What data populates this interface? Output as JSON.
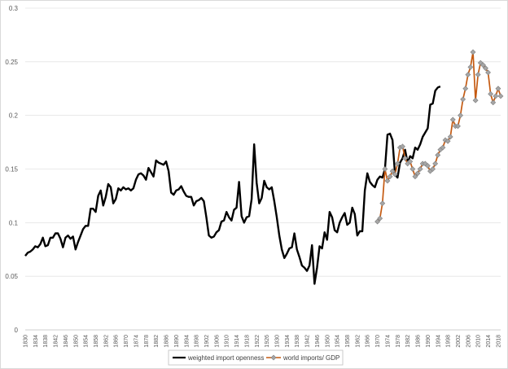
{
  "chart_data": {
    "type": "line",
    "title": "",
    "xlabel": "",
    "ylabel": "",
    "xlim": [
      1830,
      2019
    ],
    "ylim": [
      0,
      0.3
    ],
    "y_ticks": [
      0,
      0.05,
      0.1,
      0.15,
      0.2,
      0.25,
      0.3
    ],
    "y_tick_labels": [
      "0",
      "0.05",
      "0.1",
      "0.15",
      "0.2",
      "0.25",
      "0.3"
    ],
    "x_ticks": [
      1830,
      1834,
      1838,
      1842,
      1846,
      1850,
      1854,
      1858,
      1862,
      1866,
      1870,
      1874,
      1878,
      1882,
      1886,
      1890,
      1894,
      1898,
      1902,
      1906,
      1910,
      1914,
      1918,
      1922,
      1926,
      1930,
      1934,
      1938,
      1942,
      1946,
      1950,
      1954,
      1958,
      1962,
      1966,
      1970,
      1974,
      1978,
      1982,
      1986,
      1990,
      1994,
      1998,
      2002,
      2006,
      2010,
      2014,
      2018
    ],
    "grid": "horizontal",
    "legend_position": "bottom",
    "series": [
      {
        "name": "weighted import openness",
        "color": "#000000",
        "marker": "none",
        "x": [
          1830,
          1831,
          1832,
          1833,
          1834,
          1835,
          1836,
          1837,
          1838,
          1839,
          1840,
          1841,
          1842,
          1843,
          1844,
          1845,
          1846,
          1847,
          1848,
          1849,
          1850,
          1851,
          1852,
          1853,
          1854,
          1855,
          1856,
          1857,
          1858,
          1859,
          1860,
          1861,
          1862,
          1863,
          1864,
          1865,
          1866,
          1867,
          1868,
          1869,
          1870,
          1871,
          1872,
          1873,
          1874,
          1875,
          1876,
          1877,
          1878,
          1879,
          1880,
          1881,
          1882,
          1883,
          1884,
          1885,
          1886,
          1887,
          1888,
          1889,
          1890,
          1891,
          1892,
          1893,
          1894,
          1895,
          1896,
          1897,
          1898,
          1899,
          1900,
          1901,
          1902,
          1903,
          1904,
          1905,
          1906,
          1907,
          1908,
          1909,
          1910,
          1911,
          1912,
          1913,
          1914,
          1915,
          1916,
          1917,
          1918,
          1919,
          1920,
          1921,
          1922,
          1923,
          1924,
          1925,
          1926,
          1927,
          1928,
          1929,
          1930,
          1931,
          1932,
          1933,
          1934,
          1935,
          1936,
          1937,
          1938,
          1939,
          1940,
          1941,
          1942,
          1943,
          1944,
          1945,
          1946,
          1947,
          1948,
          1949,
          1950,
          1951,
          1952,
          1953,
          1954,
          1955,
          1956,
          1957,
          1958,
          1959,
          1960,
          1961,
          1962,
          1963,
          1964,
          1965,
          1966,
          1967,
          1968,
          1969,
          1970,
          1971,
          1972,
          1973,
          1974,
          1975,
          1976,
          1977,
          1978,
          1979,
          1980,
          1981,
          1982,
          1983,
          1984,
          1985,
          1986,
          1987,
          1988,
          1989,
          1990,
          1991,
          1992,
          1993,
          1994,
          1995
        ],
        "y": [
          0.069,
          0.072,
          0.073,
          0.075,
          0.078,
          0.077,
          0.08,
          0.086,
          0.078,
          0.079,
          0.086,
          0.086,
          0.09,
          0.09,
          0.085,
          0.077,
          0.086,
          0.088,
          0.085,
          0.087,
          0.075,
          0.082,
          0.088,
          0.094,
          0.097,
          0.097,
          0.113,
          0.113,
          0.11,
          0.125,
          0.13,
          0.116,
          0.124,
          0.136,
          0.133,
          0.118,
          0.122,
          0.132,
          0.13,
          0.133,
          0.131,
          0.132,
          0.13,
          0.132,
          0.14,
          0.145,
          0.146,
          0.144,
          0.14,
          0.151,
          0.147,
          0.143,
          0.158,
          0.156,
          0.155,
          0.154,
          0.157,
          0.148,
          0.128,
          0.126,
          0.13,
          0.131,
          0.134,
          0.129,
          0.125,
          0.124,
          0.124,
          0.116,
          0.12,
          0.121,
          0.123,
          0.12,
          0.105,
          0.088,
          0.086,
          0.087,
          0.091,
          0.093,
          0.101,
          0.102,
          0.11,
          0.105,
          0.102,
          0.112,
          0.114,
          0.138,
          0.106,
          0.1,
          0.105,
          0.106,
          0.122,
          0.173,
          0.137,
          0.118,
          0.123,
          0.139,
          0.133,
          0.131,
          0.133,
          0.12,
          0.105,
          0.088,
          0.075,
          0.067,
          0.071,
          0.076,
          0.077,
          0.09,
          0.075,
          0.068,
          0.06,
          0.058,
          0.055,
          0.06,
          0.079,
          0.043,
          0.058,
          0.078,
          0.076,
          0.091,
          0.084,
          0.11,
          0.105,
          0.093,
          0.091,
          0.1,
          0.105,
          0.109,
          0.098,
          0.1,
          0.114,
          0.108,
          0.088,
          0.092,
          0.092,
          0.13,
          0.146,
          0.138,
          0.135,
          0.133,
          0.14,
          0.143,
          0.142,
          0.15,
          0.182,
          0.183,
          0.177,
          0.145,
          0.142,
          0.156,
          0.16,
          0.168,
          0.156,
          0.162,
          0.16,
          0.17,
          0.168,
          0.173,
          0.18,
          0.184,
          0.188,
          0.21,
          0.211,
          0.223,
          0.226,
          0.227
        ]
      },
      {
        "name": "world imports/ GDP",
        "color": "#c55a11",
        "marker": "diamond",
        "marker_color": "#a6a6a6",
        "x": [
          1970,
          1971,
          1972,
          1973,
          1974,
          1975,
          1976,
          1977,
          1978,
          1979,
          1980,
          1981,
          1982,
          1983,
          1984,
          1985,
          1986,
          1987,
          1988,
          1989,
          1990,
          1991,
          1992,
          1993,
          1994,
          1995,
          1996,
          1997,
          1998,
          1999,
          2000,
          2001,
          2002,
          2003,
          2004,
          2005,
          2006,
          2007,
          2008,
          2009,
          2010,
          2011,
          2012,
          2013,
          2014,
          2015,
          2016,
          2017,
          2018,
          2019
        ],
        "y": [
          0.101,
          0.104,
          0.118,
          0.15,
          0.139,
          0.143,
          0.148,
          0.145,
          0.155,
          0.17,
          0.171,
          0.16,
          0.155,
          0.157,
          0.15,
          0.143,
          0.146,
          0.15,
          0.155,
          0.155,
          0.153,
          0.148,
          0.15,
          0.155,
          0.163,
          0.168,
          0.17,
          0.177,
          0.176,
          0.18,
          0.196,
          0.19,
          0.19,
          0.2,
          0.215,
          0.225,
          0.238,
          0.245,
          0.259,
          0.214,
          0.238,
          0.249,
          0.247,
          0.244,
          0.24,
          0.22,
          0.212,
          0.218,
          0.225,
          0.218
        ]
      }
    ]
  }
}
